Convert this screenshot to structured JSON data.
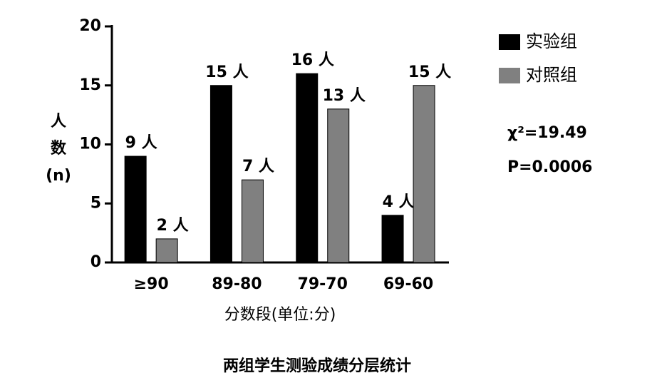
{
  "chart_data": {
    "type": "bar",
    "title": "两组学生测验成绩分层统计",
    "x_label": "分数段(单位:分)",
    "y_label": "人数(n)",
    "categories": [
      "≥90",
      "89-80",
      "79-70",
      "69-60"
    ],
    "series": [
      {
        "name": "实验组",
        "color": "#000000",
        "values": [
          9,
          15,
          16,
          4
        ],
        "value_labels": [
          "9 人",
          "15 人",
          "16 人",
          "4 人"
        ]
      },
      {
        "name": "对照组",
        "color": "#808080",
        "values": [
          2,
          7,
          13,
          15
        ],
        "value_labels": [
          "2 人",
          "7 人",
          "13 人",
          "15 人"
        ]
      }
    ],
    "ylim": [
      0,
      20
    ],
    "yticks": [
      0,
      5,
      10,
      15,
      20
    ],
    "grid": false,
    "legend": "upper right",
    "annotations": [
      "χ²=19.49",
      "P=0.0006"
    ]
  }
}
